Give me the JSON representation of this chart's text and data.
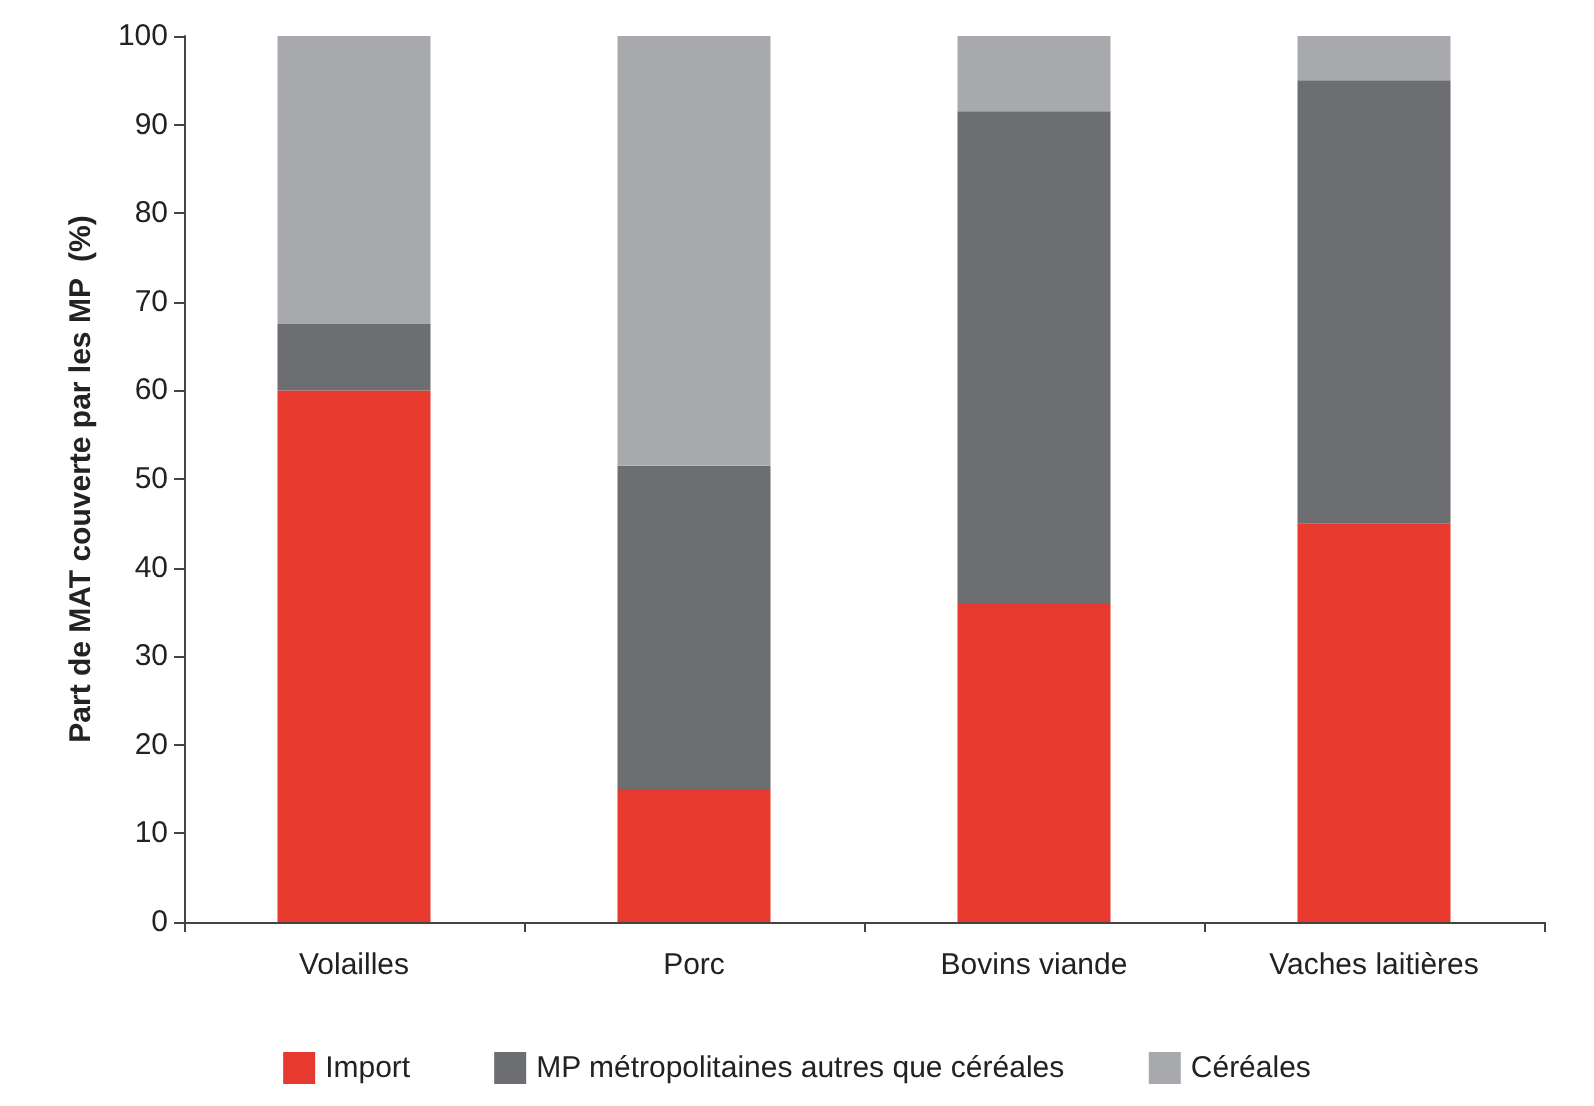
{
  "chart_data": {
    "type": "bar",
    "stacked": true,
    "ylabel": "Part de MAT couverte par les MP  (%)",
    "categories": [
      "Volailles",
      "Porc",
      "Bovins viande",
      "Vaches laitières"
    ],
    "series": [
      {
        "name": "Import",
        "color": "#e8392f",
        "values": [
          60,
          15,
          36,
          45
        ]
      },
      {
        "name": "MP métropolitaines autres que céréales",
        "color": "#6d6e71",
        "values": [
          7.5,
          36.5,
          55.5,
          50
        ]
      },
      {
        "name": "Céréales",
        "color": "#a7a9ac",
        "values": [
          32.5,
          48.5,
          8.5,
          5
        ]
      }
    ],
    "ylim": [
      0,
      100
    ],
    "yticks": [
      0,
      10,
      20,
      30,
      40,
      50,
      60,
      70,
      80,
      90,
      100
    ],
    "grid": false,
    "legend": "bottom"
  }
}
